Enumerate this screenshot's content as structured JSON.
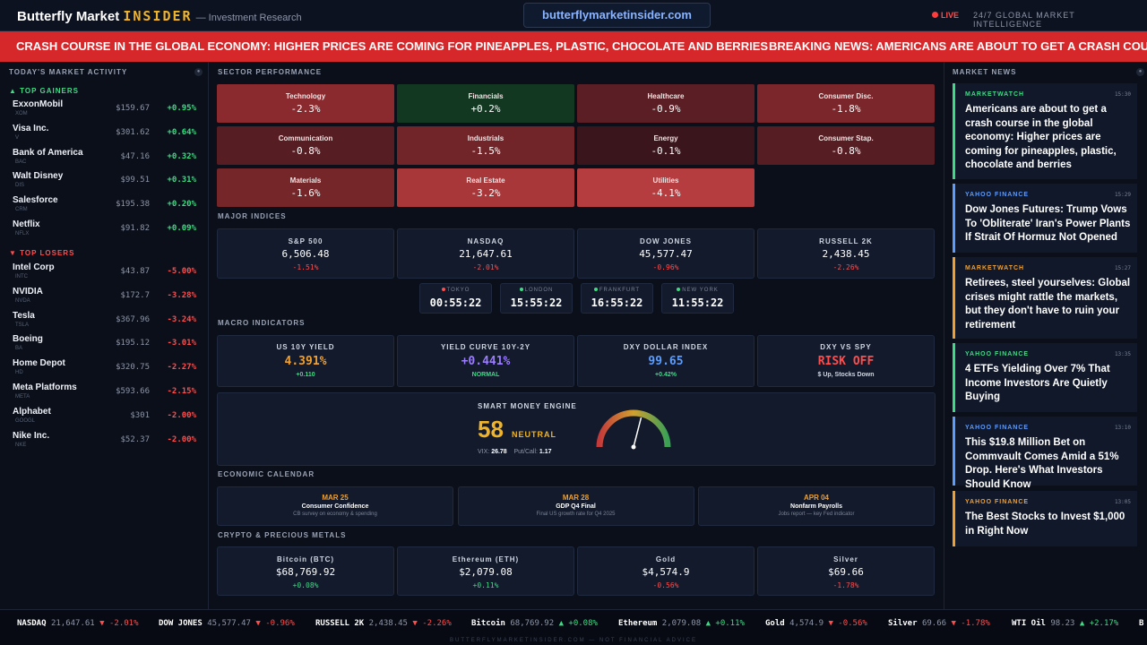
{
  "header": {
    "brand_main": "Butterfly Market",
    "brand_insider": "INSIDER",
    "brand_sub": "— Investment Research",
    "url": "butterflymarketinsider.com",
    "live": "LIVE",
    "intel": "24/7 GLOBAL MARKET INTELLIGENCE"
  },
  "ticker": {
    "items": [
      "CRASH COURSE IN THE GLOBAL ECONOMY: HIGHER PRICES ARE COMING FOR PINEAPPLES, PLASTIC, CHOCOLATE AND BERRIES",
      "BREAKING NEWS: AMERICANS ARE ABOUT TO GET A CRASH COURSE"
    ]
  },
  "left": {
    "title": "TODAY'S MARKET ACTIVITY",
    "gainers_label": "▲ TOP GAINERS",
    "losers_label": "▼ TOP LOSERS",
    "gainers": [
      {
        "name": "ExxonMobil",
        "ticker": "XOM",
        "price": "$159.67",
        "change": "+0.95%"
      },
      {
        "name": "Visa Inc.",
        "ticker": "V",
        "price": "$301.62",
        "change": "+0.64%"
      },
      {
        "name": "Bank of America",
        "ticker": "BAC",
        "price": "$47.16",
        "change": "+0.32%"
      },
      {
        "name": "Walt Disney",
        "ticker": "DIS",
        "price": "$99.51",
        "change": "+0.31%"
      },
      {
        "name": "Salesforce",
        "ticker": "CRM",
        "price": "$195.38",
        "change": "+0.20%"
      },
      {
        "name": "Netflix",
        "ticker": "NFLX",
        "price": "$91.82",
        "change": "+0.09%"
      }
    ],
    "losers": [
      {
        "name": "Intel Corp",
        "ticker": "INTC",
        "price": "$43.87",
        "change": "-5.00%"
      },
      {
        "name": "NVIDIA",
        "ticker": "NVDA",
        "price": "$172.7",
        "change": "-3.28%"
      },
      {
        "name": "Tesla",
        "ticker": "TSLA",
        "price": "$367.96",
        "change": "-3.24%"
      },
      {
        "name": "Boeing",
        "ticker": "BA",
        "price": "$195.12",
        "change": "-3.01%"
      },
      {
        "name": "Home Depot",
        "ticker": "HD",
        "price": "$320.75",
        "change": "-2.27%"
      },
      {
        "name": "Meta Platforms",
        "ticker": "META",
        "price": "$593.66",
        "change": "-2.15%"
      },
      {
        "name": "Alphabet",
        "ticker": "GOOGL",
        "price": "$301",
        "change": "-2.00%"
      },
      {
        "name": "Nike Inc.",
        "ticker": "NKE",
        "price": "$52.37",
        "change": "-2.00%"
      }
    ]
  },
  "sectors": {
    "title": "SECTOR PERFORMANCE",
    "items": [
      {
        "name": "Technology",
        "value": "-2.3%",
        "color": "#8a2a2e"
      },
      {
        "name": "Financials",
        "value": "+0.2%",
        "color": "#123822"
      },
      {
        "name": "Healthcare",
        "value": "-0.9%",
        "color": "#5a1e24"
      },
      {
        "name": "Consumer Disc.",
        "value": "-1.8%",
        "color": "#7a262b"
      },
      {
        "name": "Communication",
        "value": "-0.8%",
        "color": "#561d23"
      },
      {
        "name": "Industrials",
        "value": "-1.5%",
        "color": "#712529"
      },
      {
        "name": "Energy",
        "value": "-0.1%",
        "color": "#3a151b"
      },
      {
        "name": "Consumer Stap.",
        "value": "-0.8%",
        "color": "#561d23"
      },
      {
        "name": "Materials",
        "value": "-1.6%",
        "color": "#742629"
      },
      {
        "name": "Real Estate",
        "value": "-3.2%",
        "color": "#a8373a"
      },
      {
        "name": "Utilities",
        "value": "-4.1%",
        "color": "#b53d40"
      }
    ]
  },
  "indices": {
    "title": "MAJOR INDICES",
    "items": [
      {
        "name": "S&P 500",
        "value": "6,506.48",
        "change": "-1.51%"
      },
      {
        "name": "NASDAQ",
        "value": "21,647.61",
        "change": "-2.01%"
      },
      {
        "name": "DOW JONES",
        "value": "45,577.47",
        "change": "-0.96%"
      },
      {
        "name": "RUSSELL 2K",
        "value": "2,438.45",
        "change": "-2.26%"
      }
    ]
  },
  "clocks": [
    {
      "city": "TOKYO",
      "time": "00:55:22",
      "color": "#ff4d4d"
    },
    {
      "city": "LONDON",
      "time": "15:55:22",
      "color": "#3ddc84"
    },
    {
      "city": "FRANKFURT",
      "time": "16:55:22",
      "color": "#3ddc84"
    },
    {
      "city": "NEW YORK",
      "time": "11:55:22",
      "color": "#3ddc84"
    }
  ],
  "macro": {
    "title": "MACRO INDICATORS",
    "items": [
      {
        "label": "US 10Y YIELD",
        "value": "4.391%",
        "sub": "+0.110",
        "vcolor": "#f0a030",
        "scolor": "#3ddc84"
      },
      {
        "label": "YIELD CURVE 10Y-2Y",
        "value": "+0.441%",
        "sub": "NORMAL",
        "vcolor": "#9b7bff",
        "scolor": "#3ddc84"
      },
      {
        "label": "DXY DOLLAR INDEX",
        "value": "99.65",
        "sub": "+0.42%",
        "vcolor": "#5b9cff",
        "scolor": "#3ddc84"
      },
      {
        "label": "DXY VS SPY",
        "value": "RISK OFF",
        "sub": "$ Up, Stocks Down",
        "vcolor": "#ff4d4d",
        "scolor": "#d0d6e2"
      }
    ]
  },
  "smart_money": {
    "title": "SMART MONEY ENGINE",
    "score": "58",
    "gauge_value": 58,
    "label": "NEUTRAL",
    "vix_label": "VIX:",
    "vix": "26.78",
    "pc_label": "Put/Call:",
    "pc": "1.17"
  },
  "calendar": {
    "title": "ECONOMIC CALENDAR",
    "items": [
      {
        "date": "MAR 25",
        "event": "Consumer Confidence",
        "desc": "CB survey on economy & spending"
      },
      {
        "date": "MAR 28",
        "event": "GDP Q4 Final",
        "desc": "Final US growth rate for Q4 2025"
      },
      {
        "date": "APR 04",
        "event": "Nonfarm Payrolls",
        "desc": "Jobs report — key Fed indicator"
      }
    ]
  },
  "crypto": {
    "title": "CRYPTO & PRECIOUS METALS",
    "items": [
      {
        "name": "Bitcoin (BTC)",
        "value": "$68,769.92",
        "change": "+0.08%"
      },
      {
        "name": "Ethereum (ETH)",
        "value": "$2,079.08",
        "change": "+0.11%"
      },
      {
        "name": "Gold",
        "value": "$4,574.9",
        "change": "-0.56%"
      },
      {
        "name": "Silver",
        "value": "$69.66",
        "change": "-1.78%"
      }
    ]
  },
  "news": {
    "title": "MARKET NEWS",
    "items": [
      {
        "source": "MARKETWATCH",
        "time": "15:30",
        "headline": "Americans are about to get a crash course in the global economy: Higher prices are coming for pineapples, plastic, chocolate and berries",
        "color": "#3ddc84"
      },
      {
        "source": "YAHOO FINANCE",
        "time": "15:29",
        "headline": "Dow Jones Futures: Trump Vows To 'Obliterate' Iran's Power Plants If Strait Of Hormuz Not Opened",
        "color": "#5b9cff"
      },
      {
        "source": "MARKETWATCH",
        "time": "15:27",
        "headline": "Retirees, steel yourselves: Global crises might rattle the markets, but they don't have to ruin your retirement",
        "color": "#f0a030"
      },
      {
        "source": "YAHOO FINANCE",
        "time": "13:35",
        "headline": "4 ETFs Yielding Over 7% That Income Investors Are Quietly Buying",
        "color": "#3ddc84"
      },
      {
        "source": "YAHOO FINANCE",
        "time": "13:10",
        "headline": "This $19.8 Million Bet on Commvault Comes Amid a 51% Drop. Here's What Investors Should Know",
        "color": "#5b9cff"
      },
      {
        "source": "YAHOO FINANCE",
        "time": "13:05",
        "headline": "The Best Stocks to Invest $1,000 in Right Now",
        "color": "#f0a030"
      }
    ]
  },
  "bottom": {
    "items": [
      {
        "name": "NASDAQ",
        "price": "21,647.61",
        "change": "▼ -2.01%",
        "dir": "dn"
      },
      {
        "name": "DOW JONES",
        "price": "45,577.47",
        "change": "▼ -0.96%",
        "dir": "dn"
      },
      {
        "name": "RUSSELL 2K",
        "price": "2,438.45",
        "change": "▼ -2.26%",
        "dir": "dn"
      },
      {
        "name": "Bitcoin",
        "price": "68,769.92",
        "change": "▲ +0.08%",
        "dir": "up"
      },
      {
        "name": "Ethereum",
        "price": "2,079.08",
        "change": "▲ +0.11%",
        "dir": "up"
      },
      {
        "name": "Gold",
        "price": "4,574.9",
        "change": "▼ -0.56%",
        "dir": "dn"
      },
      {
        "name": "Silver",
        "price": "69.66",
        "change": "▼ -1.78%",
        "dir": "dn"
      },
      {
        "name": "WTI Oil",
        "price": "98.23",
        "change": "▲ +2.17%",
        "dir": "up"
      },
      {
        "name": "B",
        "price": "",
        "change": "",
        "dir": "up"
      }
    ],
    "footer": "BUTTERFLYMARKETINSIDER.COM — NOT FINANCIAL ADVICE"
  }
}
